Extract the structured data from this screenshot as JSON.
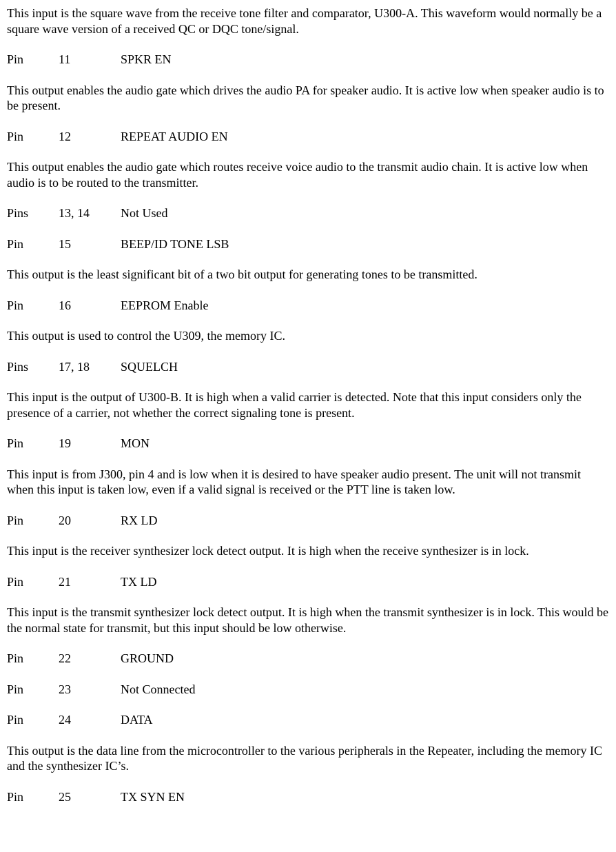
{
  "intro": "This input is the square wave from the receive tone filter and comparator, U300-A.  This waveform would normally be a square wave version of a received QC or DQC tone/signal.",
  "entries": [
    {
      "label": "Pin",
      "number": "11",
      "name": "SPKR EN",
      "desc": "This output enables the audio gate which drives the audio PA for speaker audio.  It is active low when speaker audio is to be present."
    },
    {
      "label": "Pin",
      "number": "12",
      "name": "REPEAT AUDIO EN",
      "desc": "This output enables the audio gate which routes receive voice audio to the transmit audio chain.  It is active low when audio is to be routed to the transmitter."
    },
    {
      "label": "Pins",
      "number": "13, 14",
      "name": "Not Used",
      "desc": ""
    },
    {
      "label": "Pin",
      "number": "15",
      "name": "BEEP/ID TONE LSB",
      "desc": "This output is the least significant bit of a two bit output for generating tones to be transmitted."
    },
    {
      "label": "Pin",
      "number": "16",
      "name": "EEPROM Enable",
      "desc": "This output is used to control the U309, the memory IC."
    },
    {
      "label": "Pins",
      "number": "17, 18",
      "name": "SQUELCH",
      "desc": "This input is the output of U300-B.  It is high when a valid carrier is detected.  Note that this input considers only the presence of a carrier, not whether the correct signaling tone is present."
    },
    {
      "label": "Pin",
      "number": "19",
      "name": "MON",
      "desc": "This input is from J300, pin 4 and is low when it is desired to have speaker audio present.  The unit will not transmit when this input is taken low, even if a valid signal is received or the PTT line is taken low."
    },
    {
      "label": "Pin",
      "number": "20",
      "name": "RX LD",
      "desc": "This input is the receiver synthesizer lock detect output.  It is high when the receive synthesizer is in lock."
    },
    {
      "label": "Pin",
      "number": "21",
      "name": "TX LD",
      "desc": "This input is the transmit synthesizer lock detect output.  It is high when the transmit synthesizer is in lock.  This would be the normal state for transmit, but this input should be low otherwise."
    },
    {
      "label": "Pin",
      "number": "22",
      "name": "GROUND",
      "desc": ""
    },
    {
      "label": "Pin",
      "number": "23",
      "name": "Not Connected",
      "desc": ""
    },
    {
      "label": "Pin",
      "number": "24",
      "name": "DATA",
      "desc": "This output is the data line from the microcontroller to the various peripherals in the Repeater, including the memory IC and the synthesizer IC’s."
    },
    {
      "label": "Pin",
      "number": "25",
      "name": "TX SYN EN",
      "desc": ""
    }
  ]
}
